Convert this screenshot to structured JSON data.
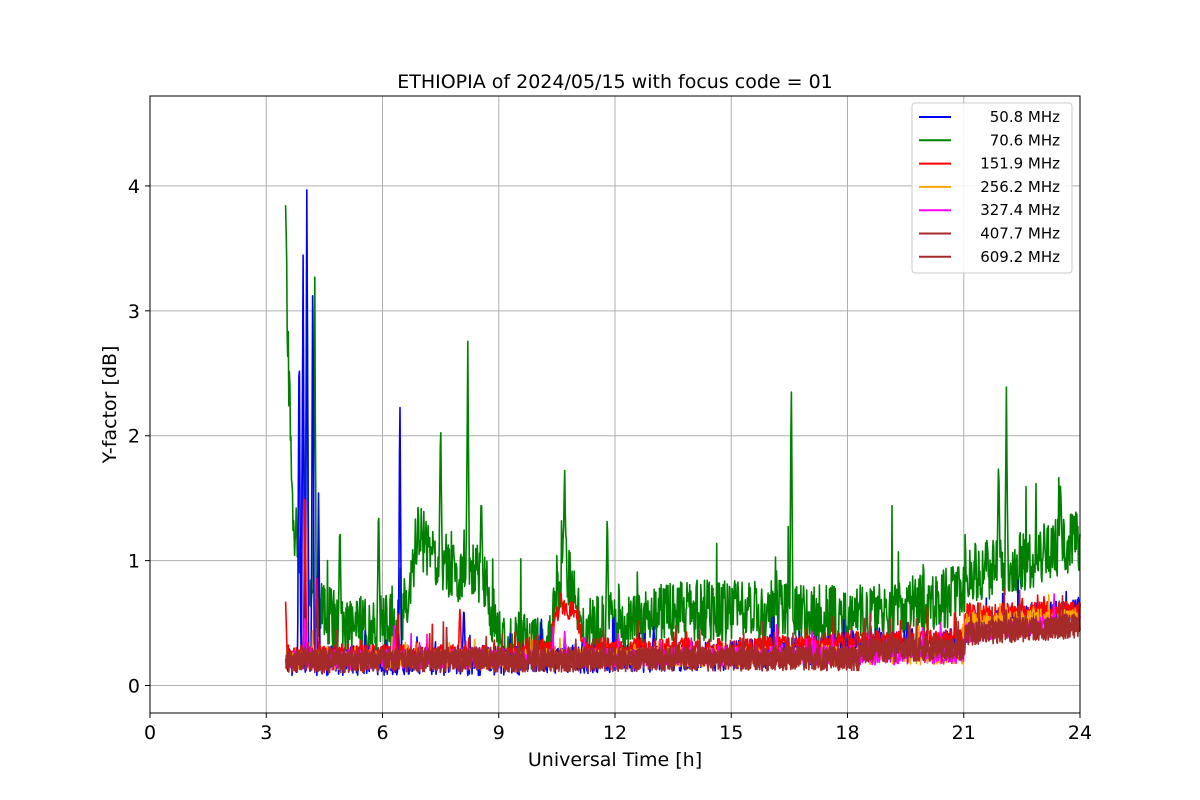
{
  "chart_data": {
    "type": "line",
    "title": "ETHIOPIA of 2024/05/15 with focus code = 01",
    "xlabel": "Universal Time [h]",
    "ylabel": "Y-factor [dB]",
    "xlim": [
      0,
      24
    ],
    "ylim": [
      -0.22,
      4.72
    ],
    "xticks": [
      0,
      3,
      6,
      9,
      12,
      15,
      18,
      21,
      24
    ],
    "xtick_labels": [
      "0",
      "3",
      "6",
      "9",
      "12",
      "15",
      "18",
      "21",
      "24"
    ],
    "yticks": [
      0,
      1,
      2,
      3,
      4
    ],
    "ytick_labels": [
      "0",
      "1",
      "2",
      "3",
      "4"
    ],
    "grid": true,
    "legend_position": "top-right",
    "data_start_hour": 3.5,
    "series": [
      {
        "name": "50.8 MHz",
        "color": "#0000ff",
        "base_points": [
          [
            3.5,
            0.2
          ],
          [
            9,
            0.2
          ],
          [
            12,
            0.22
          ],
          [
            15,
            0.24
          ],
          [
            18,
            0.3
          ],
          [
            21,
            0.34
          ],
          [
            21.05,
            0.45
          ],
          [
            24,
            0.6
          ]
        ],
        "noise": 0.12,
        "spikes": [
          [
            3.85,
            3.3
          ],
          [
            3.95,
            3.6
          ],
          [
            4.05,
            4.48
          ],
          [
            4.2,
            3.6
          ],
          [
            4.35,
            1.65
          ],
          [
            6.45,
            2.58
          ],
          [
            8.1,
            0.7
          ],
          [
            10.1,
            0.55
          ],
          [
            13.0,
            0.5
          ],
          [
            16.0,
            0.45
          ],
          [
            21.4,
            0.65
          ]
        ]
      },
      {
        "name": "70.6 MHz",
        "color": "#008000",
        "base_points": [
          [
            3.5,
            3.2
          ],
          [
            3.7,
            1.3
          ],
          [
            4.4,
            0.6
          ],
          [
            5.0,
            0.45
          ],
          [
            6.5,
            0.5
          ],
          [
            6.9,
            1.2
          ],
          [
            7.8,
            0.9
          ],
          [
            8.6,
            0.9
          ],
          [
            9.0,
            0.35
          ],
          [
            10.3,
            0.35
          ],
          [
            10.7,
            1.0
          ],
          [
            11.2,
            0.45
          ],
          [
            12,
            0.5
          ],
          [
            14,
            0.6
          ],
          [
            16,
            0.6
          ],
          [
            18,
            0.55
          ],
          [
            20,
            0.65
          ],
          [
            21,
            0.75
          ],
          [
            21.05,
            0.9
          ],
          [
            22,
            0.95
          ],
          [
            24,
            1.15
          ]
        ],
        "noise": 0.25,
        "spikes": [
          [
            3.5,
            3.88
          ],
          [
            3.95,
            3.3
          ],
          [
            4.05,
            4.16
          ],
          [
            4.25,
            3.4
          ],
          [
            4.9,
            1.42
          ],
          [
            5.9,
            1.55
          ],
          [
            7.5,
            2.2
          ],
          [
            8.2,
            2.88
          ],
          [
            8.55,
            1.6
          ],
          [
            10.7,
            1.78
          ],
          [
            11.8,
            1.5
          ],
          [
            16.55,
            2.7
          ],
          [
            21.9,
            1.88
          ],
          [
            22.1,
            2.45
          ],
          [
            23.5,
            1.7
          ]
        ]
      },
      {
        "name": "151.9 MHz",
        "color": "#ff0000",
        "base_points": [
          [
            3.5,
            0.25
          ],
          [
            9,
            0.25
          ],
          [
            10.3,
            0.3
          ],
          [
            10.5,
            0.6
          ],
          [
            11.0,
            0.6
          ],
          [
            11.2,
            0.3
          ],
          [
            15,
            0.3
          ],
          [
            18,
            0.35
          ],
          [
            21,
            0.38
          ],
          [
            21.05,
            0.58
          ],
          [
            24,
            0.6
          ]
        ],
        "noise": 0.08,
        "spikes": [
          [
            3.5,
            0.68
          ],
          [
            4.0,
            1.9
          ],
          [
            4.3,
            1.1
          ],
          [
            6.4,
            0.62
          ],
          [
            8.0,
            0.7
          ],
          [
            10.6,
            0.78
          ],
          [
            18.6,
            0.5
          ]
        ]
      },
      {
        "name": "256.2 MHz",
        "color": "#ffa500",
        "base_points": [
          [
            3.5,
            0.2
          ],
          [
            21,
            0.25
          ],
          [
            21.05,
            0.5
          ],
          [
            24,
            0.55
          ]
        ],
        "noise": 0.08,
        "spikes": [
          [
            12.5,
            0.35
          ],
          [
            22.8,
            0.65
          ]
        ]
      },
      {
        "name": "327.4 MHz",
        "color": "#ff00ff",
        "base_points": [
          [
            3.5,
            0.2
          ],
          [
            21,
            0.25
          ],
          [
            21.05,
            0.42
          ],
          [
            24,
            0.5
          ]
        ],
        "noise": 0.08,
        "spikes": [
          [
            4.0,
            0.62
          ],
          [
            6.3,
            0.5
          ],
          [
            10.7,
            0.45
          ]
        ]
      },
      {
        "name": "407.7 MHz",
        "color": "#a52a2a",
        "base_points": [
          [
            3.5,
            0.2
          ],
          [
            18.3,
            0.22
          ],
          [
            18.35,
            0.28
          ],
          [
            21,
            0.3
          ],
          [
            21.05,
            0.42
          ],
          [
            24,
            0.48
          ]
        ],
        "noise": 0.1,
        "spikes": []
      },
      {
        "name": "609.2 MHz",
        "color": "#a52a2a",
        "base_points": [
          [
            3.5,
            0.2
          ],
          [
            18.3,
            0.22
          ],
          [
            18.35,
            0.28
          ],
          [
            21,
            0.3
          ],
          [
            21.05,
            0.42
          ],
          [
            24,
            0.48
          ]
        ],
        "noise": 0.1,
        "spikes": []
      }
    ]
  }
}
